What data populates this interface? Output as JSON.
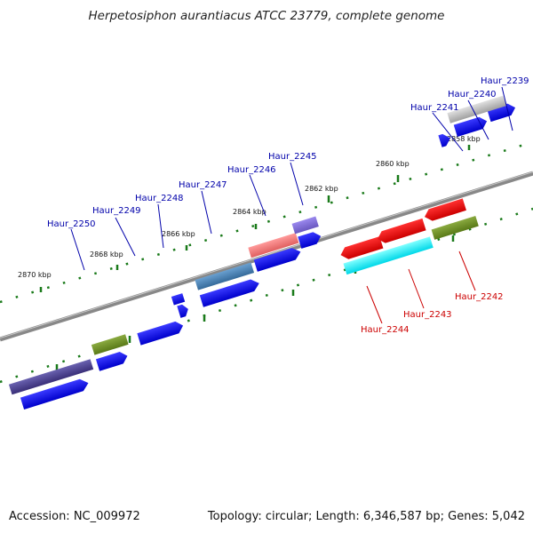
{
  "title": "Herpetosiphon aurantiacus ATCC 23779, complete genome",
  "footer": {
    "accession": "Accession: NC_009972",
    "info": "Topology: circular; Length: 6,346,587 bp; Genes: 5,042"
  },
  "colors": {
    "forward_label": "#0000aa",
    "reverse_label": "#cc0000",
    "backbone": "#808080",
    "tick": "#1a7a1a"
  },
  "scale_labels": [
    "2858 kbp",
    "2860 kbp",
    "2862 kbp",
    "2864 kbp",
    "2866 kbp",
    "2868 kbp",
    "2870 kbp"
  ],
  "gene_labels": {
    "forward": [
      "Haur_2239",
      "Haur_2240",
      "Haur_2241",
      "Haur_2245",
      "Haur_2246",
      "Haur_2247",
      "Haur_2248",
      "Haur_2249",
      "Haur_2250"
    ],
    "reverse": [
      "Haur_2242",
      "Haur_2243",
      "Haur_2244"
    ]
  }
}
